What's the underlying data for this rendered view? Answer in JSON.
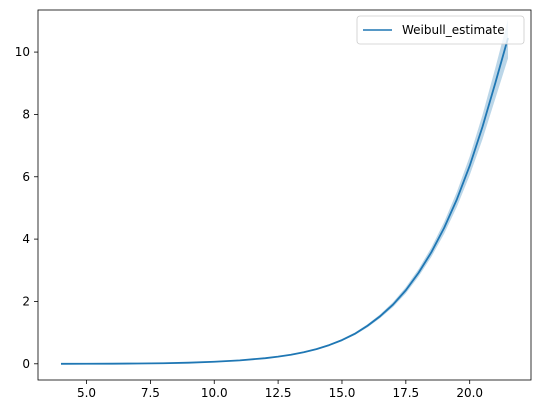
{
  "chart_data": {
    "type": "line",
    "title": "",
    "xlabel": "",
    "ylabel": "",
    "xlim": [
      3.1,
      22.4
    ],
    "ylim": [
      -0.52,
      11.35
    ],
    "xticks": [
      5.0,
      7.5,
      10.0,
      12.5,
      15.0,
      17.5,
      20.0
    ],
    "xtick_labels": [
      "5.0",
      "7.5",
      "10.0",
      "12.5",
      "15.0",
      "17.5",
      "20.0"
    ],
    "yticks": [
      0,
      2,
      4,
      6,
      8,
      10
    ],
    "ytick_labels": [
      "0",
      "2",
      "4",
      "6",
      "8",
      "10"
    ],
    "grid": false,
    "legend": {
      "position": "top-right",
      "entries": [
        "Weibull_estimate"
      ]
    },
    "series": [
      {
        "name": "Weibull_estimate",
        "color": "#1f77b4",
        "band_color": "#1f77b4",
        "x": [
          4.0,
          5.0,
          6.0,
          7.0,
          8.0,
          9.0,
          10.0,
          11.0,
          12.0,
          12.5,
          13.0,
          13.5,
          14.0,
          14.5,
          15.0,
          15.5,
          16.0,
          16.5,
          17.0,
          17.5,
          18.0,
          18.5,
          19.0,
          19.5,
          20.0,
          20.5,
          21.0,
          21.5
        ],
        "values": [
          0.0,
          0.001,
          0.004,
          0.009,
          0.018,
          0.035,
          0.065,
          0.11,
          0.18,
          0.23,
          0.29,
          0.37,
          0.47,
          0.6,
          0.76,
          0.96,
          1.22,
          1.53,
          1.9,
          2.36,
          2.92,
          3.58,
          4.36,
          5.28,
          6.35,
          7.6,
          9.0,
          10.45
        ],
        "lower": [
          0.0,
          0.001,
          0.004,
          0.009,
          0.017,
          0.033,
          0.062,
          0.105,
          0.172,
          0.22,
          0.278,
          0.355,
          0.45,
          0.575,
          0.73,
          0.92,
          1.17,
          1.47,
          1.82,
          2.26,
          2.8,
          3.43,
          4.17,
          5.04,
          6.05,
          7.2,
          8.5,
          9.8
        ],
        "upper": [
          0.0,
          0.001,
          0.004,
          0.009,
          0.019,
          0.037,
          0.068,
          0.115,
          0.188,
          0.24,
          0.302,
          0.385,
          0.49,
          0.625,
          0.79,
          1.0,
          1.27,
          1.59,
          1.98,
          2.46,
          3.04,
          3.73,
          4.55,
          5.52,
          6.65,
          7.98,
          9.48,
          11.05
        ]
      }
    ]
  }
}
